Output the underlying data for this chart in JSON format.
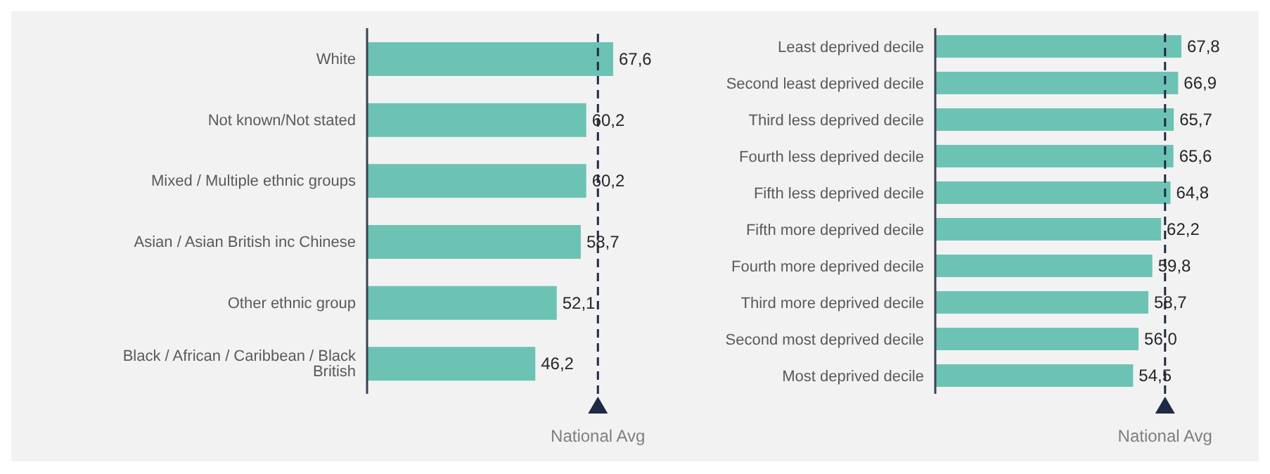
{
  "chart_data": [
    {
      "type": "bar",
      "orientation": "horizontal",
      "categories": [
        "White",
        "Not known/Not stated",
        "Mixed / Multiple ethnic groups",
        "Asian / Asian British inc Chinese",
        "Other ethnic group",
        "Black / African / Caribbean / Black British"
      ],
      "values": [
        67.6,
        60.2,
        60.2,
        58.7,
        52.1,
        46.2
      ],
      "value_labels": [
        "67,6",
        "60,2",
        "60,2",
        "58,7",
        "52,1",
        "46,2"
      ],
      "color": "#6cc3b3",
      "tick_labels": "y",
      "grid": false,
      "legend": false,
      "ref_lines": [
        {
          "axis": "x",
          "value": 63.4,
          "label": "National Avg",
          "color": "#1f2a44",
          "line_style": "dashed"
        }
      ]
    },
    {
      "type": "bar",
      "orientation": "horizontal",
      "categories": [
        "Least deprived decile",
        "Second least deprived decile",
        "Third less deprived decile",
        "Fourth less deprived decile",
        "Fifth less deprived decile",
        "Fifth more deprived decile",
        "Fourth more deprived decile",
        "Third more deprived decile",
        "Second most deprived decile",
        "Most deprived decile"
      ],
      "values": [
        67.8,
        66.9,
        65.7,
        65.6,
        64.8,
        62.2,
        59.8,
        58.7,
        56.0,
        54.5
      ],
      "value_labels": [
        "67,8",
        "66,9",
        "65,7",
        "65,6",
        "64,8",
        "62,2",
        "59,8",
        "58,7",
        "56,0",
        "54,5"
      ],
      "color": "#6cc3b3",
      "tick_labels": "y",
      "grid": false,
      "legend": false,
      "ref_lines": [
        {
          "axis": "x",
          "value": 63.3,
          "label": "National Avg",
          "color": "#1f2a44",
          "line_style": "dashed"
        }
      ]
    }
  ]
}
